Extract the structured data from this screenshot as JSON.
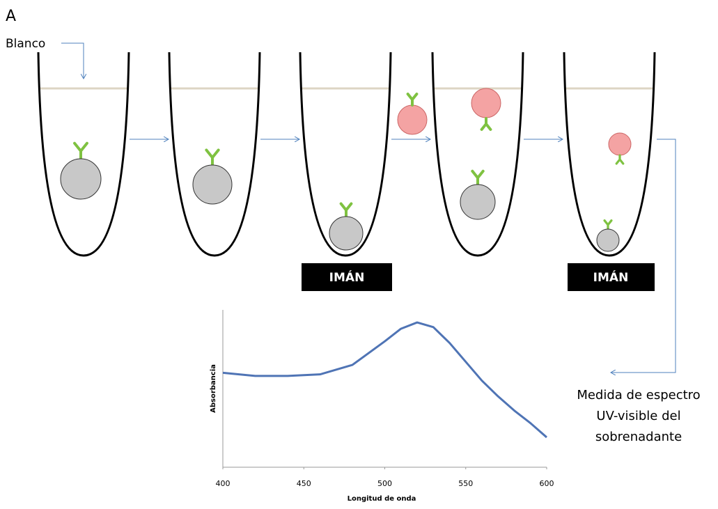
{
  "label": "A",
  "blanco": "Blanco",
  "magnets": [
    "IMÁN",
    "IMÁN"
  ],
  "caption": [
    "Medida de espectro",
    "UV-visible del",
    "sobrenadante"
  ],
  "chart_data": {
    "type": "line",
    "xlabel": "Longitud de onda",
    "ylabel": "Absorbancia",
    "x": [
      400,
      420,
      440,
      460,
      480,
      500,
      510,
      520,
      530,
      540,
      550,
      560,
      570,
      580,
      590,
      600
    ],
    "series": [
      {
        "color": "#4f74b5",
        "values": [
          0.6,
          0.58,
          0.58,
          0.59,
          0.65,
          0.8,
          0.88,
          0.92,
          0.89,
          0.79,
          0.67,
          0.55,
          0.45,
          0.36,
          0.28,
          0.19
        ]
      }
    ],
    "xlim": [
      400,
      600
    ],
    "xticks": [
      400,
      450,
      500,
      550,
      600
    ],
    "ylim": [
      0,
      1
    ]
  }
}
